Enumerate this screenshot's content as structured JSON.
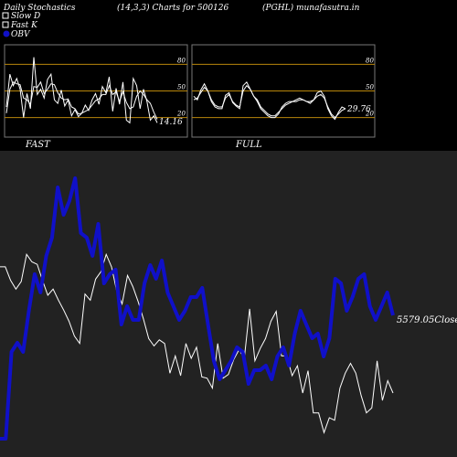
{
  "header": {
    "title": "Daily Stochastics",
    "params": "(14,3,3) Charts for 500126",
    "symbol": "(PGHL) munafasutra.in"
  },
  "legend": {
    "items": [
      {
        "label": "Slow  D",
        "color": "#ffffff"
      },
      {
        "label": "Fast K",
        "color": "#ffffff"
      },
      {
        "label": "OBV",
        "color": "#1010c8"
      }
    ]
  },
  "colors": {
    "background": "#000000",
    "main_panel": "#222222",
    "level_line": "#b8860b",
    "price_line": "#ffffff",
    "obv_line": "#1010c8"
  },
  "chart_data": [
    {
      "type": "line",
      "title": "FAST",
      "ylim": [
        0,
        100
      ],
      "levels": [
        20,
        50,
        80
      ],
      "tick_labels": [
        "80",
        "50",
        "20"
      ],
      "last_value_label": "14.16",
      "series": [
        {
          "name": "Fast K",
          "values": [
            32,
            69,
            56,
            64,
            52,
            20,
            47,
            30,
            88,
            46,
            52,
            42,
            63,
            69,
            40,
            36,
            51,
            33,
            40,
            22,
            29,
            21,
            25,
            34,
            28,
            40,
            47,
            35,
            55,
            48,
            66,
            27,
            53,
            35,
            60,
            17,
            14,
            64,
            56,
            30,
            52,
            38,
            17,
            22,
            14
          ]
        },
        {
          "name": "Slow  D",
          "values": [
            25,
            52,
            60,
            58,
            57,
            42,
            40,
            35,
            55,
            54,
            60,
            47,
            52,
            58,
            57,
            48,
            42,
            40,
            41,
            32,
            30,
            24,
            25,
            27,
            29,
            34,
            39,
            41,
            46,
            46,
            56,
            46,
            49,
            38,
            49,
            37,
            30,
            32,
            44,
            50,
            46,
            40,
            36,
            26,
            18
          ]
        }
      ]
    },
    {
      "type": "line",
      "title": "FULL",
      "ylim": [
        0,
        100
      ],
      "levels": [
        20,
        50,
        80
      ],
      "tick_labels": [
        "80",
        "50",
        "20"
      ],
      "last_value_label": "29.76",
      "series": [
        {
          "name": "Fast K",
          "values": [
            44,
            40,
            51,
            58,
            50,
            38,
            32,
            30,
            30,
            45,
            48,
            37,
            33,
            30,
            56,
            60,
            52,
            44,
            38,
            30,
            26,
            22,
            20,
            20,
            24,
            32,
            36,
            38,
            38,
            40,
            42,
            40,
            38,
            36,
            40,
            48,
            50,
            44,
            30,
            22,
            18,
            26,
            32,
            30
          ]
        },
        {
          "name": "Slow  D",
          "values": [
            40,
            42,
            48,
            54,
            50,
            40,
            34,
            32,
            32,
            42,
            46,
            38,
            34,
            32,
            50,
            56,
            52,
            44,
            40,
            32,
            28,
            24,
            22,
            22,
            26,
            30,
            34,
            36,
            38,
            38,
            40,
            40,
            38,
            38,
            40,
            44,
            46,
            42,
            32,
            24,
            20,
            24,
            28,
            30
          ]
        }
      ]
    },
    {
      "type": "line",
      "last_value_label": "5579.05Close",
      "series": [
        {
          "name": "Close",
          "values": [
            210,
            210,
            199,
            192,
            198,
            220,
            214,
            212,
            199,
            187,
            192,
            183,
            175,
            166,
            154,
            148,
            188,
            183,
            200,
            206,
            220,
            210,
            190,
            180,
            203,
            194,
            182,
            168,
            152,
            146,
            151,
            148,
            124,
            138,
            122,
            148,
            136,
            145,
            121,
            120,
            112,
            148,
            120,
            123,
            135,
            143,
            136,
            176,
            134,
            144,
            152,
            166,
            174,
            138,
            138,
            122,
            130,
            108,
            126,
            92,
            92,
            76,
            88,
            86,
            112,
            124,
            132,
            124,
            106,
            92,
            96,
            134,
            102,
            118,
            108
          ]
        },
        {
          "name": "OBV",
          "values": [
            30,
            30,
            220,
            240,
            220,
            310,
            390,
            350,
            430,
            470,
            580,
            520,
            550,
            600,
            480,
            470,
            430,
            500,
            370,
            390,
            400,
            280,
            320,
            290,
            290,
            370,
            410,
            380,
            420,
            350,
            320,
            290,
            310,
            340,
            340,
            360,
            280,
            200,
            160,
            180,
            200,
            230,
            220,
            150,
            180,
            180,
            190,
            160,
            210,
            230,
            190,
            260,
            310,
            280,
            250,
            260,
            210,
            250,
            380,
            370,
            310,
            340,
            380,
            390,
            320,
            290,
            320,
            350,
            300
          ]
        }
      ]
    }
  ]
}
